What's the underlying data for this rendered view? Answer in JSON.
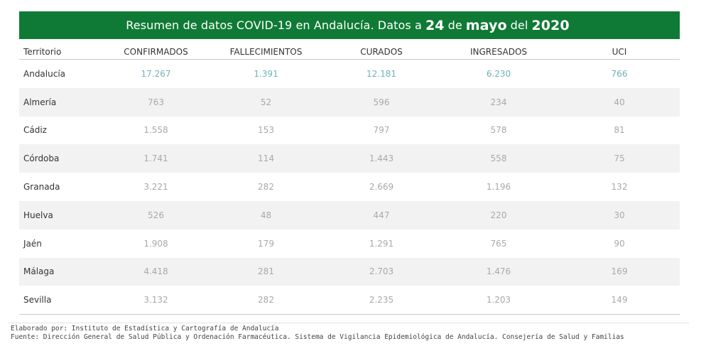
{
  "title": {
    "prefix": "Resumen de datos COVID-19 en Andalucía. Datos a",
    "day": "24",
    "de1": "de",
    "month": "mayo",
    "de2": "del",
    "year": "2020"
  },
  "chart_data": {
    "type": "table",
    "columns": [
      "Territorio",
      "CONFIRMADOS",
      "FALLECIMIENTOS",
      "CURADOS",
      "INGRESADOS",
      "UCI"
    ],
    "rows": [
      [
        "Andalucía",
        "17.267",
        "1.391",
        "12.181",
        "6.230",
        "766"
      ],
      [
        "Almería",
        "763",
        "52",
        "596",
        "234",
        "40"
      ],
      [
        "Cádiz",
        "1.558",
        "153",
        "797",
        "578",
        "81"
      ],
      [
        "Córdoba",
        "1.741",
        "114",
        "1.443",
        "558",
        "75"
      ],
      [
        "Granada",
        "3.221",
        "282",
        "2.669",
        "1.196",
        "132"
      ],
      [
        "Huelva",
        "526",
        "48",
        "447",
        "220",
        "30"
      ],
      [
        "Jaén",
        "1.908",
        "179",
        "1.291",
        "765",
        "90"
      ],
      [
        "Málaga",
        "4.418",
        "281",
        "2.703",
        "1.476",
        "169"
      ],
      [
        "Sevilla",
        "3.132",
        "282",
        "2.235",
        "1.203",
        "149"
      ]
    ]
  },
  "footer": {
    "elaborado": "Elaborado por: Instituto de Estadística y Cartografía de Andalucía",
    "fuente": "Fuente: Dirección General de Salud Pública y Ordenación Farmacéutica. Sistema de Vigilancia Epidemiológica de Andalucía. Consejería de Salud y Familias"
  },
  "colors": {
    "banner": "#0f7a35",
    "total_values": "#6fb2b8",
    "values": "#a9a9a9",
    "alt_row": "#f2f2f2"
  }
}
